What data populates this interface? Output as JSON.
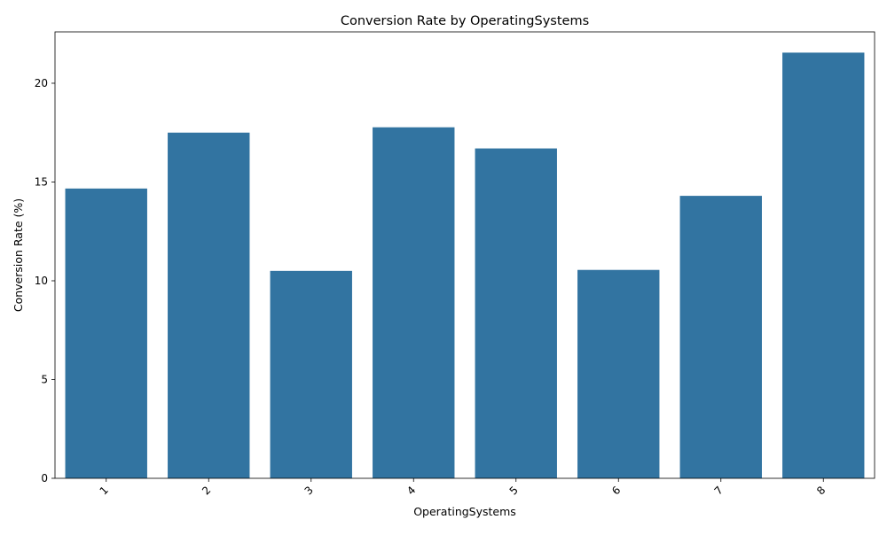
{
  "chart_data": {
    "type": "bar",
    "title": "Conversion Rate by OperatingSystems",
    "xlabel": "OperatingSystems",
    "ylabel": "Conversion Rate (%)",
    "categories": [
      "1",
      "2",
      "3",
      "4",
      "5",
      "6",
      "7",
      "8"
    ],
    "values": [
      14.67,
      17.5,
      10.5,
      17.77,
      16.7,
      10.55,
      14.3,
      21.55
    ],
    "ylim": [
      0,
      22.6
    ],
    "yticks": [
      0,
      5,
      10,
      15,
      20
    ],
    "bar_color": "#3274a1",
    "grid": false,
    "legend": "none",
    "xtick_rotation": 45
  }
}
